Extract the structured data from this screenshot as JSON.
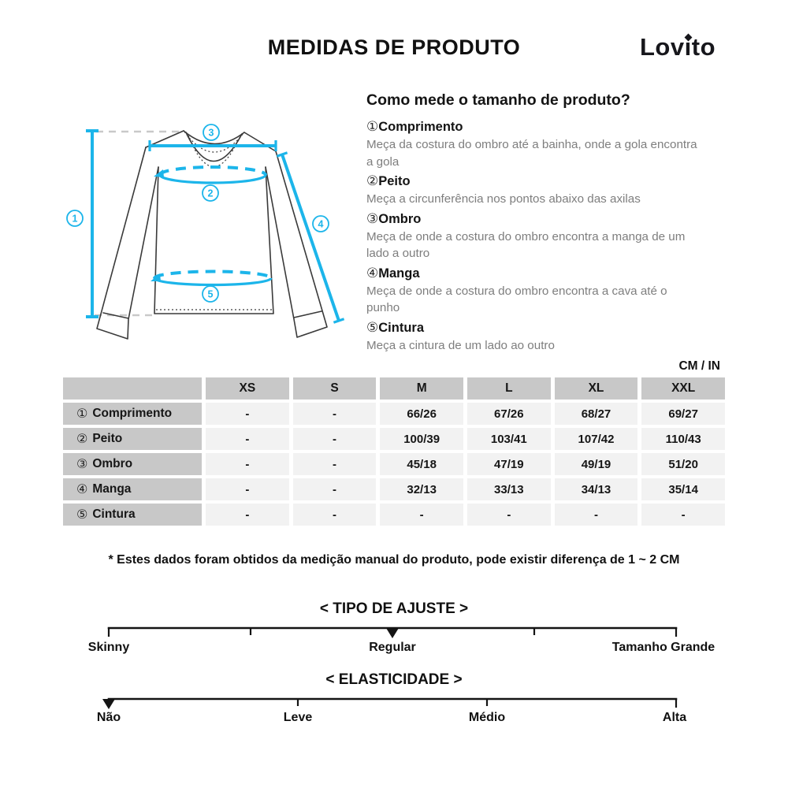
{
  "header": {
    "title": "MEDIDAS DE PRODUTO",
    "brand": "Lovito"
  },
  "instructions": {
    "heading": "Como mede o tamanho de produto?",
    "items": [
      {
        "num": "①",
        "label": "Comprimento",
        "desc": "Meça da costura do ombro até a bainha, onde a gola encontra\na gola"
      },
      {
        "num": "②",
        "label": "Peito",
        "desc": "Meça a circunferência nos pontos abaixo das axilas"
      },
      {
        "num": "③",
        "label": "Ombro",
        "desc": "Meça de onde a costura do ombro encontra a manga de um\nlado a outro"
      },
      {
        "num": "④",
        "label": "Manga",
        "desc": "Meça de onde a costura do ombro encontra a cava até o\npunho"
      },
      {
        "num": "⑤",
        "label": "Cintura",
        "desc": "Meça a cintura de um lado ao outro"
      }
    ]
  },
  "diagram": {
    "accent_color": "#1cb5ea",
    "callouts": [
      "1",
      "2",
      "3",
      "4",
      "5"
    ]
  },
  "table": {
    "unit_label": "CM / IN",
    "sizes": [
      "XS",
      "S",
      "M",
      "L",
      "XL",
      "XXL"
    ],
    "rows": [
      {
        "num": "①",
        "label": "Comprimento",
        "values": [
          "-",
          "-",
          "66/26",
          "67/26",
          "68/27",
          "69/27"
        ]
      },
      {
        "num": "②",
        "label": "Peito",
        "values": [
          "-",
          "-",
          "100/39",
          "103/41",
          "107/42",
          "110/43"
        ]
      },
      {
        "num": "③",
        "label": "Ombro",
        "values": [
          "-",
          "-",
          "45/18",
          "47/19",
          "49/19",
          "51/20"
        ]
      },
      {
        "num": "④",
        "label": "Manga",
        "values": [
          "-",
          "-",
          "32/13",
          "33/13",
          "34/13",
          "35/14"
        ]
      },
      {
        "num": "⑤",
        "label": "Cintura",
        "values": [
          "-",
          "-",
          "-",
          "-",
          "-",
          "-"
        ]
      }
    ]
  },
  "note": "* Estes dados foram obtidos da medição manual do produto, pode existir diferença de 1 ~ 2 CM",
  "scales": {
    "fit": {
      "heading": "< TIPO DE AJUSTE >",
      "labels": [
        "Skinny",
        "Regular",
        "Tamanho Grande"
      ],
      "selected": "Regular"
    },
    "elasticity": {
      "heading": "< ELASTICIDADE >",
      "labels": [
        "Não",
        "Leve",
        "Médio",
        "Alta"
      ],
      "selected": "Não"
    }
  }
}
